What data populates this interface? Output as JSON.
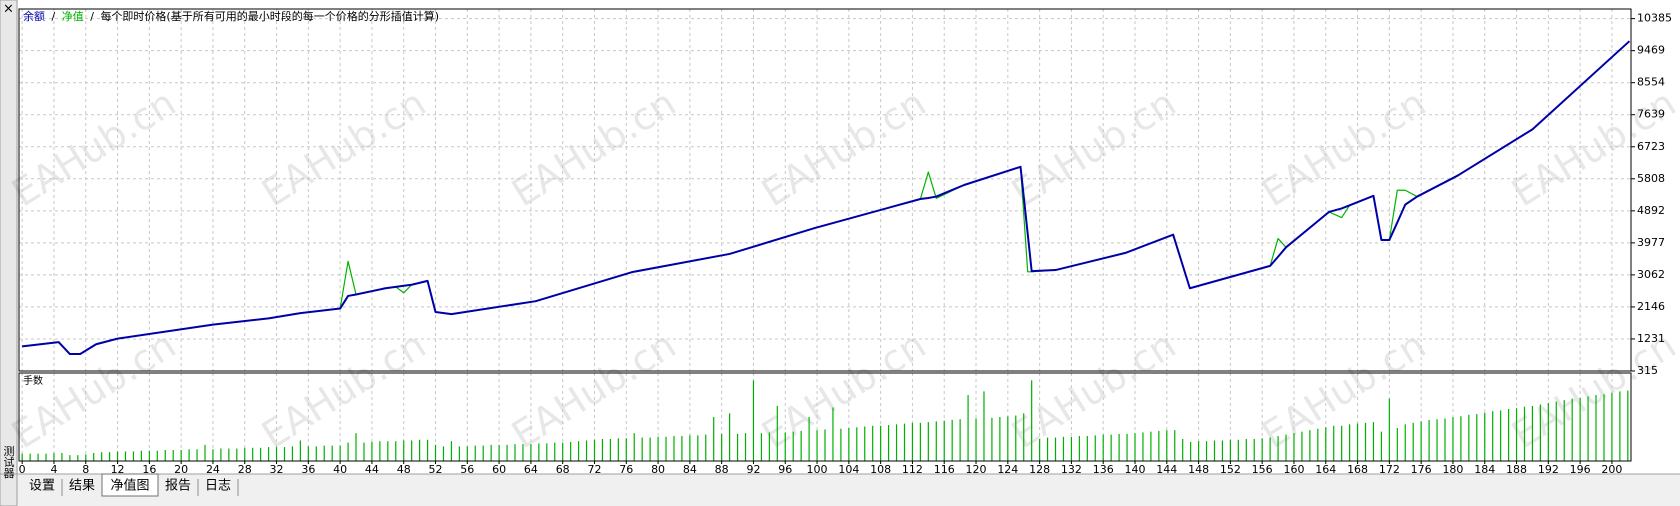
{
  "sidebar": {
    "close": "×",
    "label": "测试器"
  },
  "watermark": "EAHub.cn",
  "chart_data": [
    {
      "type": "line",
      "title": "每个即时价格(基于所有可用的最小时段的每一个价格的分形插值计算)",
      "separator": "/",
      "x": [
        0,
        4.6,
        6,
        7.3,
        9.3,
        12,
        24,
        31,
        35,
        40,
        41,
        42,
        45.7,
        47,
        48,
        49,
        51,
        52,
        54,
        64.6,
        76.7,
        89,
        99.7,
        113,
        114,
        115,
        118.5,
        125.6,
        126.5,
        127,
        130,
        138.8,
        144.8,
        146.9,
        157,
        158,
        159,
        164.4,
        166,
        167,
        170,
        171,
        172,
        173,
        174,
        175.5,
        180.6,
        190,
        202.2
      ],
      "series": [
        {
          "name": "净值",
          "color": "#00b400",
          "width": 1.2,
          "values": [
            1020,
            1140,
            800,
            800,
            1080,
            1240,
            1640,
            1820,
            1970,
            2100,
            3450,
            2500,
            2680,
            2720,
            2550,
            2780,
            2890,
            2000,
            1940,
            2310,
            3140,
            3660,
            4400,
            5230,
            6000,
            5250,
            5630,
            6150,
            3150,
            3150,
            3200,
            3690,
            4210,
            2680,
            3320,
            4100,
            3850,
            4860,
            4700,
            5050,
            5320,
            4060,
            4060,
            5480,
            5480,
            5300,
            5900,
            7220,
            9740
          ]
        },
        {
          "name": "余额",
          "color": "#0000a8",
          "width": 2,
          "values": [
            1020,
            1140,
            800,
            800,
            1080,
            1240,
            1640,
            1820,
            1970,
            2100,
            2460,
            2500,
            2680,
            2720,
            2750,
            2780,
            2890,
            2000,
            1940,
            2310,
            3140,
            3660,
            4400,
            5230,
            5260,
            5300,
            5630,
            6150,
            4240,
            3170,
            3200,
            3690,
            4210,
            2680,
            3320,
            3580,
            3850,
            4860,
            4960,
            5050,
            5320,
            4060,
            4060,
            4560,
            5070,
            5300,
            5900,
            7220,
            9740
          ]
        }
      ],
      "xlim": [
        -0.4,
        202.4
      ],
      "ylim": [
        315,
        10660
      ],
      "yticks": [
        315,
        1231,
        2146,
        3062,
        3977,
        4892,
        5808,
        6723,
        7639,
        8554,
        9469,
        10385
      ],
      "grid": true
    },
    {
      "type": "bar",
      "title": "手数",
      "color": "#00b000",
      "values": [
        0.1,
        0.1,
        0.1,
        0.1,
        0.11,
        0.11,
        0.08,
        0.08,
        0.09,
        0.11,
        0.12,
        0.12,
        0.13,
        0.13,
        0.13,
        0.14,
        0.14,
        0.14,
        0.15,
        0.15,
        0.15,
        0.16,
        0.16,
        0.22,
        0.16,
        0.17,
        0.17,
        0.17,
        0.18,
        0.18,
        0.18,
        0.19,
        0.19,
        0.19,
        0.2,
        0.28,
        0.2,
        0.2,
        0.21,
        0.21,
        0.21,
        0.25,
        0.38,
        0.25,
        0.26,
        0.27,
        0.27,
        0.27,
        0.28,
        0.28,
        0.29,
        0.29,
        0.22,
        0.2,
        0.27,
        0.2,
        0.2,
        0.21,
        0.21,
        0.22,
        0.22,
        0.22,
        0.23,
        0.23,
        0.23,
        0.24,
        0.24,
        0.25,
        0.25,
        0.26,
        0.27,
        0.28,
        0.29,
        0.3,
        0.3,
        0.31,
        0.31,
        0.38,
        0.32,
        0.32,
        0.33,
        0.33,
        0.34,
        0.34,
        0.35,
        0.35,
        0.36,
        0.6,
        0.37,
        0.65,
        0.37,
        0.38,
        1.1,
        0.38,
        0.39,
        0.75,
        0.39,
        0.4,
        0.41,
        0.6,
        0.42,
        0.43,
        0.73,
        0.44,
        0.45,
        0.46,
        0.47,
        0.48,
        0.48,
        0.49,
        0.5,
        0.51,
        0.52,
        0.52,
        0.53,
        0.54,
        0.55,
        0.56,
        0.57,
        0.9,
        0.58,
        0.95,
        0.59,
        0.6,
        0.61,
        0.62,
        0.65,
        1.1,
        0.3,
        0.32,
        0.32,
        0.33,
        0.33,
        0.34,
        0.34,
        0.35,
        0.36,
        0.36,
        0.37,
        0.37,
        0.38,
        0.39,
        0.4,
        0.41,
        0.42,
        0.42,
        0.3,
        0.26,
        0.27,
        0.27,
        0.28,
        0.28,
        0.29,
        0.29,
        0.3,
        0.3,
        0.31,
        0.32,
        0.34,
        0.36,
        0.38,
        0.4,
        0.42,
        0.44,
        0.46,
        0.48,
        0.48,
        0.5,
        0.51,
        0.52,
        0.53,
        0.4,
        0.85,
        0.45,
        0.5,
        0.52,
        0.54,
        0.56,
        0.57,
        0.58,
        0.6,
        0.61,
        0.63,
        0.64,
        0.66,
        0.68,
        0.69,
        0.71,
        0.72,
        0.74,
        0.75,
        0.77,
        0.79,
        0.81,
        0.83,
        0.85,
        0.86,
        0.88,
        0.9,
        0.91,
        0.93,
        0.95,
        0.96
      ],
      "xlim": [
        -0.4,
        202.4
      ],
      "ylim": [
        0,
        1.2
      ],
      "xticks": [
        0,
        4,
        8,
        12,
        16,
        20,
        24,
        28,
        32,
        36,
        40,
        44,
        48,
        52,
        56,
        60,
        64,
        68,
        72,
        76,
        80,
        84,
        88,
        92,
        96,
        100,
        104,
        108,
        112,
        116,
        120,
        124,
        128,
        132,
        136,
        140,
        144,
        148,
        152,
        156,
        160,
        164,
        168,
        172,
        176,
        180,
        184,
        188,
        192,
        196,
        200
      ],
      "grid": true
    }
  ],
  "tabs": [
    "设置",
    "结果",
    "净值图",
    "报告",
    "日志"
  ],
  "active_tab": 2
}
